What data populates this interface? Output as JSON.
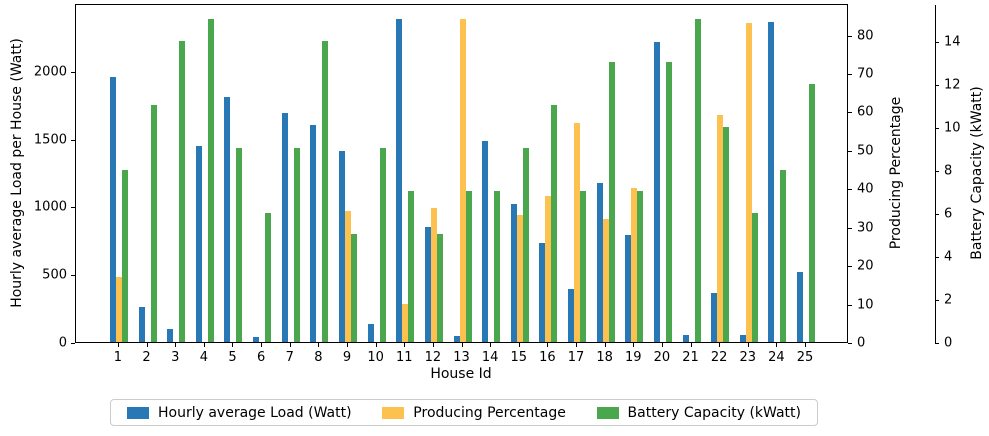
{
  "chart_data": {
    "type": "bar",
    "title": "",
    "xlabel": "House Id",
    "categories": [
      "1",
      "2",
      "3",
      "4",
      "5",
      "6",
      "7",
      "8",
      "9",
      "10",
      "11",
      "12",
      "13",
      "14",
      "15",
      "16",
      "17",
      "18",
      "19",
      "20",
      "21",
      "22",
      "23",
      "24",
      "25"
    ],
    "series": [
      {
        "name": "Hourly average Load (Watt)",
        "axis": "y_left",
        "color": "#2878b5",
        "values": [
          1955,
          255,
          95,
          1445,
          1810,
          35,
          1690,
          1600,
          1410,
          130,
          2380,
          850,
          45,
          1480,
          1020,
          730,
          390,
          1175,
          790,
          2210,
          55,
          365,
          50,
          2360,
          520
        ]
      },
      {
        "name": "Producing Percentage",
        "axis": "y_right1",
        "color": "#fdc14f",
        "values": [
          17,
          0,
          0,
          0,
          0,
          0,
          0,
          0,
          34,
          0,
          10,
          35,
          84,
          0,
          33,
          38,
          57,
          32,
          40,
          0,
          0,
          59,
          83,
          0,
          0
        ]
      },
      {
        "name": "Battery Capacity (kWatt)",
        "axis": "y_right2",
        "color": "#4aa74e",
        "values": [
          8,
          11,
          14,
          15,
          9,
          6,
          9,
          14,
          5,
          9,
          7,
          5,
          7,
          7,
          9,
          11,
          7,
          13,
          7,
          13,
          15,
          10,
          6,
          8,
          12
        ]
      }
    ],
    "axes": {
      "y_left": {
        "label": "Hourly average Load per House (Watt)",
        "ticks": [
          0,
          500,
          1000,
          1500,
          2000
        ],
        "max": 2499
      },
      "y_right1": {
        "label": "Producing Percentage",
        "ticks": [
          0,
          10,
          20,
          30,
          40,
          50,
          60,
          70,
          80
        ],
        "max": 88.2
      },
      "y_right2": {
        "label": "Battery Capacity (kWatt)",
        "ticks": [
          0,
          2,
          4,
          6,
          8,
          10,
          12,
          14
        ],
        "max": 15.75
      }
    },
    "legend_position": "bottom-center",
    "grid": false
  }
}
